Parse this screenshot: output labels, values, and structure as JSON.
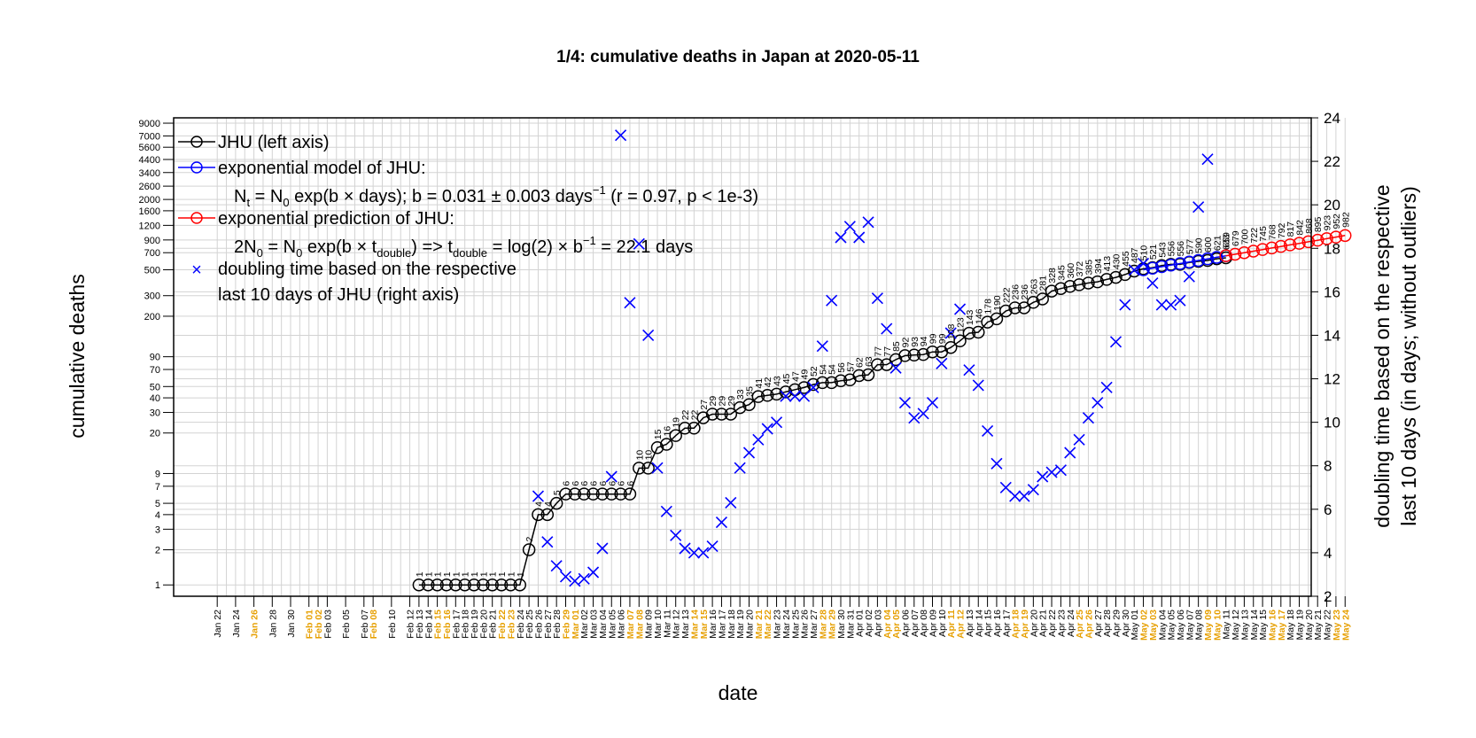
{
  "chart_data": {
    "type": "line",
    "title": "1/4: cumulative deaths in Japan at 2020-05-11",
    "xlabel": "date",
    "ylabel": "cumulative deaths",
    "y2label_line1": "doubling time based on the respective",
    "y2label_line2": "last 10 days (in days; without outliers)",
    "y_scale": "log",
    "ylim": [
      0.8,
      10000
    ],
    "y_ticks": [
      1,
      2,
      3,
      4,
      5,
      7,
      9,
      20,
      30,
      40,
      50,
      70,
      90,
      200,
      300,
      500,
      700,
      900,
      1200,
      1600,
      2000,
      2600,
      3400,
      4400,
      5600,
      7000,
      9000
    ],
    "y2lim": [
      2,
      24
    ],
    "y2_ticks": [
      2,
      4,
      6,
      8,
      10,
      12,
      14,
      16,
      18,
      20,
      22,
      24
    ],
    "grid": true,
    "legend_position": "top-left",
    "legend": {
      "jhu": "JHU (left axis)",
      "model": "exponential model of JHU:",
      "model_formula_a": "N",
      "model_formula_b": " = N",
      "model_formula_c": " exp(b × days); b = 0.031 ± 0.003 days",
      "model_formula_d": " (r = 0.97, p < 1e-3)",
      "prediction": "exponential prediction of JHU:",
      "pred_formula_a": "2N",
      "pred_formula_b": " = N",
      "pred_formula_c": " exp(b × t",
      "pred_formula_d": ") => t",
      "pred_formula_e": " = log(2) × b",
      "pred_formula_f": " = 22.1 days",
      "sub_t": "t",
      "sub_0": "0",
      "sub_double": "double",
      "sup_minus1": "−1",
      "doubling_line1": "doubling time based on the respective",
      "doubling_line2": "last 10 days of JHU (right axis)"
    },
    "colors": {
      "jhu": "#000000",
      "model": "#0000ff",
      "prediction": "#ff0000",
      "doubling": "#0000ff",
      "weekend_label": "#e69f00",
      "grid": "#d3d3d3"
    },
    "dates": [
      "Jan 22",
      "Jan 23",
      "Jan 24",
      "Jan 25",
      "Jan 26",
      "Jan 27",
      "Jan 28",
      "Jan 29",
      "Jan 30",
      "Jan 31",
      "Feb 01",
      "Feb 02",
      "Feb 03",
      "Feb 04",
      "Feb 05",
      "Feb 06",
      "Feb 07",
      "Feb 08",
      "Feb 09",
      "Feb 10",
      "Feb 11",
      "Feb 12",
      "Feb 13",
      "Feb 14",
      "Feb 15",
      "Feb 16",
      "Feb 17",
      "Feb 18",
      "Feb 19",
      "Feb 20",
      "Feb 21",
      "Feb 22",
      "Feb 23",
      "Feb 24",
      "Feb 25",
      "Feb 26",
      "Feb 27",
      "Feb 28",
      "Feb 29",
      "Mar 01",
      "Mar 02",
      "Mar 03",
      "Mar 04",
      "Mar 05",
      "Mar 06",
      "Mar 07",
      "Mar 08",
      "Mar 09",
      "Mar 10",
      "Mar 11",
      "Mar 12",
      "Mar 13",
      "Mar 14",
      "Mar 15",
      "Mar 16",
      "Mar 17",
      "Mar 18",
      "Mar 19",
      "Mar 20",
      "Mar 21",
      "Mar 22",
      "Mar 23",
      "Mar 24",
      "Mar 25",
      "Mar 26",
      "Mar 27",
      "Mar 28",
      "Mar 29",
      "Mar 30",
      "Mar 31",
      "Apr 01",
      "Apr 02",
      "Apr 03",
      "Apr 04",
      "Apr 05",
      "Apr 06",
      "Apr 07",
      "Apr 08",
      "Apr 09",
      "Apr 10",
      "Apr 11",
      "Apr 12",
      "Apr 13",
      "Apr 14",
      "Apr 15",
      "Apr 16",
      "Apr 17",
      "Apr 18",
      "Apr 19",
      "Apr 20",
      "Apr 21",
      "Apr 22",
      "Apr 23",
      "Apr 24",
      "Apr 25",
      "Apr 26",
      "Apr 27",
      "Apr 28",
      "Apr 29",
      "Apr 30",
      "May 01",
      "May 02",
      "May 03",
      "May 04",
      "May 05",
      "May 06",
      "May 07",
      "May 08",
      "May 09",
      "May 10",
      "May 11",
      "May 12",
      "May 13",
      "May 14",
      "May 15",
      "May 16",
      "May 17",
      "May 18",
      "May 19",
      "May 20",
      "May 21",
      "May 22",
      "May 23",
      "May 24"
    ],
    "x_tick_labels_shown": [
      "Jan 22",
      "Jan 24",
      "Jan 26",
      "Jan 28",
      "Jan 30",
      "Feb 01",
      "Feb 02",
      "Feb 03",
      "Feb 05",
      "Feb 07",
      "Feb 08",
      "Feb 10",
      "Feb 12",
      "Feb 13",
      "Feb 14",
      "Feb 15",
      "Feb 16",
      "Feb 17",
      "Feb 18",
      "Feb 19",
      "Feb 20",
      "Feb 21",
      "Feb 22",
      "Feb 23",
      "Feb 24",
      "Feb 25",
      "Feb 26",
      "Feb 27",
      "Feb 28",
      "Feb 29",
      "Mar 01",
      "Mar 02",
      "Mar 03",
      "Mar 04",
      "Mar 05",
      "Mar 06",
      "Mar 07",
      "Mar 08",
      "Mar 09",
      "Mar 10",
      "Mar 11",
      "Mar 12",
      "Mar 13",
      "Mar 14",
      "Mar 15",
      "Mar 16",
      "Mar 17",
      "Mar 18",
      "Mar 19",
      "Mar 20",
      "Mar 21",
      "Mar 22",
      "Mar 23",
      "Mar 24",
      "Mar 25",
      "Mar 26",
      "Mar 27",
      "Mar 28",
      "Mar 29",
      "Mar 30",
      "Mar 31",
      "Apr 01",
      "Apr 02",
      "Apr 03",
      "Apr 04",
      "Apr 05",
      "Apr 06",
      "Apr 07",
      "Apr 08",
      "Apr 09",
      "Apr 10",
      "Apr 11",
      "Apr 12",
      "Apr 13",
      "Apr 14",
      "Apr 15",
      "Apr 16",
      "Apr 17",
      "Apr 18",
      "Apr 19",
      "Apr 20",
      "Apr 21",
      "Apr 22",
      "Apr 23",
      "Apr 24",
      "Apr 25",
      "Apr 26",
      "Apr 27",
      "Apr 28",
      "Apr 29",
      "Apr 30",
      "May 01",
      "May 02",
      "May 03",
      "May 04",
      "May 05",
      "May 06",
      "May 07",
      "May 08",
      "May 09",
      "May 10",
      "May 11",
      "May 12",
      "May 13",
      "May 14",
      "May 15",
      "May 16",
      "May 17",
      "May 18",
      "May 19",
      "May 20",
      "May 21",
      "May 22",
      "May 23",
      "May 24"
    ],
    "weekend_labels": [
      "Jan 25",
      "Jan 26",
      "Feb 01",
      "Feb 02",
      "Feb 08",
      "Feb 09",
      "Feb 15",
      "Feb 16",
      "Feb 22",
      "Feb 23",
      "Feb 29",
      "Mar 01",
      "Mar 07",
      "Mar 08",
      "Mar 14",
      "Mar 15",
      "Mar 21",
      "Mar 22",
      "Mar 28",
      "Mar 29",
      "Apr 04",
      "Apr 05",
      "Apr 11",
      "Apr 12",
      "Apr 18",
      "Apr 19",
      "Apr 25",
      "Apr 26",
      "May 02",
      "May 03",
      "May 09",
      "May 10",
      "May 16",
      "May 17",
      "May 23",
      "May 24"
    ],
    "series": [
      {
        "name": "JHU (left axis)",
        "points": [
          [
            "Feb 13",
            1
          ],
          [
            "Feb 14",
            1
          ],
          [
            "Feb 15",
            1
          ],
          [
            "Feb 16",
            1
          ],
          [
            "Feb 17",
            1
          ],
          [
            "Feb 18",
            1
          ],
          [
            "Feb 19",
            1
          ],
          [
            "Feb 20",
            1
          ],
          [
            "Feb 21",
            1
          ],
          [
            "Feb 22",
            1
          ],
          [
            "Feb 23",
            1
          ],
          [
            "Feb 24",
            1
          ],
          [
            "Feb 25",
            2
          ],
          [
            "Feb 26",
            4
          ],
          [
            "Feb 27",
            4
          ],
          [
            "Feb 28",
            5
          ],
          [
            "Feb 29",
            6
          ],
          [
            "Mar 01",
            6
          ],
          [
            "Mar 02",
            6
          ],
          [
            "Mar 03",
            6
          ],
          [
            "Mar 04",
            6
          ],
          [
            "Mar 05",
            6
          ],
          [
            "Mar 06",
            6
          ],
          [
            "Mar 07",
            6
          ],
          [
            "Mar 08",
            10
          ],
          [
            "Mar 09",
            10
          ],
          [
            "Mar 10",
            15
          ],
          [
            "Mar 11",
            16
          ],
          [
            "Mar 12",
            19
          ],
          [
            "Mar 13",
            22
          ],
          [
            "Mar 14",
            22
          ],
          [
            "Mar 15",
            27
          ],
          [
            "Mar 16",
            29
          ],
          [
            "Mar 17",
            29
          ],
          [
            "Mar 18",
            29
          ],
          [
            "Mar 19",
            33
          ],
          [
            "Mar 20",
            35
          ],
          [
            "Mar 21",
            41
          ],
          [
            "Mar 22",
            42
          ],
          [
            "Mar 23",
            43
          ],
          [
            "Mar 24",
            45
          ],
          [
            "Mar 25",
            47
          ],
          [
            "Mar 26",
            49
          ],
          [
            "Mar 27",
            52
          ],
          [
            "Mar 28",
            54
          ],
          [
            "Mar 29",
            54
          ],
          [
            "Mar 30",
            56
          ],
          [
            "Mar 31",
            57
          ],
          [
            "Apr 01",
            62
          ],
          [
            "Apr 02",
            63
          ],
          [
            "Apr 03",
            77
          ],
          [
            "Apr 04",
            77
          ],
          [
            "Apr 05",
            85
          ],
          [
            "Apr 06",
            92
          ],
          [
            "Apr 07",
            93
          ],
          [
            "Apr 08",
            94
          ],
          [
            "Apr 09",
            99
          ],
          [
            "Apr 10",
            99
          ],
          [
            "Apr 11",
            108
          ],
          [
            "Apr 12",
            123
          ],
          [
            "Apr 13",
            143
          ],
          [
            "Apr 14",
            146
          ],
          [
            "Apr 15",
            178
          ],
          [
            "Apr 16",
            190
          ],
          [
            "Apr 17",
            222
          ],
          [
            "Apr 18",
            236
          ],
          [
            "Apr 19",
            236
          ],
          [
            "Apr 20",
            263
          ],
          [
            "Apr 21",
            281
          ],
          [
            "Apr 22",
            328
          ],
          [
            "Apr 23",
            345
          ],
          [
            "Apr 24",
            360
          ],
          [
            "Apr 25",
            372
          ],
          [
            "Apr 26",
            385
          ],
          [
            "Apr 27",
            394
          ],
          [
            "Apr 28",
            413
          ],
          [
            "Apr 29",
            430
          ],
          [
            "Apr 30",
            455
          ],
          [
            "May 01",
            487
          ],
          [
            "May 02",
            510
          ],
          [
            "May 03",
            521
          ],
          [
            "May 04",
            543
          ],
          [
            "May 05",
            556
          ],
          [
            "May 06",
            556
          ],
          [
            "May 07",
            577
          ],
          [
            "May 08",
            590
          ],
          [
            "May 09",
            600
          ],
          [
            "May 10",
            621
          ],
          [
            "May 11",
            633
          ]
        ]
      },
      {
        "name": "exponential model of JHU:",
        "points": [
          [
            "May 02",
            500
          ],
          [
            "May 03",
            515
          ],
          [
            "May 04",
            531
          ],
          [
            "May 05",
            548
          ],
          [
            "May 06",
            565
          ],
          [
            "May 07",
            583
          ],
          [
            "May 08",
            601
          ],
          [
            "May 09",
            620
          ],
          [
            "May 10",
            639
          ],
          [
            "May 11",
            659
          ]
        ]
      },
      {
        "name": "exponential prediction of JHU:",
        "points": [
          [
            "May 11",
            659
          ],
          [
            "May 12",
            679
          ],
          [
            "May 13",
            700
          ],
          [
            "May 14",
            722
          ],
          [
            "May 15",
            745
          ],
          [
            "May 16",
            768
          ],
          [
            "May 17",
            792
          ],
          [
            "May 18",
            817
          ],
          [
            "May 19",
            842
          ],
          [
            "May 20",
            868
          ],
          [
            "May 21",
            895
          ],
          [
            "May 22",
            923
          ],
          [
            "May 23",
            952
          ],
          [
            "May 24",
            982
          ]
        ],
        "labels": [
          "659",
          "679",
          "700",
          "722",
          "745",
          "768",
          "792",
          "817",
          "842",
          "868",
          "895",
          "923",
          "952",
          "982"
        ]
      },
      {
        "name": "doubling time (right axis)",
        "axis": "right",
        "points": [
          [
            "Feb 26",
            6.6
          ],
          [
            "Feb 27",
            4.5
          ],
          [
            "Feb 28",
            3.4
          ],
          [
            "Feb 29",
            2.9
          ],
          [
            "Mar 01",
            2.7
          ],
          [
            "Mar 02",
            2.8
          ],
          [
            "Mar 03",
            3.1
          ],
          [
            "Mar 04",
            4.2
          ],
          [
            "Mar 05",
            7.5
          ],
          [
            "Mar 06",
            23.2
          ],
          [
            "Mar 07",
            15.5
          ],
          [
            "Mar 08",
            18.2
          ],
          [
            "Mar 09",
            14.0
          ],
          [
            "Mar 10",
            7.9
          ],
          [
            "Mar 11",
            5.9
          ],
          [
            "Mar 12",
            4.8
          ],
          [
            "Mar 13",
            4.2
          ],
          [
            "Mar 14",
            4.0
          ],
          [
            "Mar 15",
            4.0
          ],
          [
            "Mar 16",
            4.3
          ],
          [
            "Mar 17",
            5.4
          ],
          [
            "Mar 18",
            6.3
          ],
          [
            "Mar 19",
            7.9
          ],
          [
            "Mar 20",
            8.6
          ],
          [
            "Mar 21",
            9.2
          ],
          [
            "Mar 22",
            9.7
          ],
          [
            "Mar 23",
            10.0
          ],
          [
            "Mar 24",
            11.2
          ],
          [
            "Mar 25",
            11.2
          ],
          [
            "Mar 26",
            11.2
          ],
          [
            "Mar 27",
            11.6
          ],
          [
            "Mar 28",
            13.5
          ],
          [
            "Mar 29",
            15.6
          ],
          [
            "Mar 30",
            18.5
          ],
          [
            "Mar 31",
            19.0
          ],
          [
            "Apr 01",
            18.5
          ],
          [
            "Apr 02",
            19.2
          ],
          [
            "Apr 03",
            15.7
          ],
          [
            "Apr 04",
            14.3
          ],
          [
            "Apr 05",
            12.5
          ],
          [
            "Apr 06",
            10.9
          ],
          [
            "Apr 07",
            10.2
          ],
          [
            "Apr 08",
            10.4
          ],
          [
            "Apr 09",
            10.9
          ],
          [
            "Apr 10",
            12.7
          ],
          [
            "Apr 11",
            14.1
          ],
          [
            "Apr 12",
            15.2
          ],
          [
            "Apr 13",
            12.4
          ],
          [
            "Apr 14",
            11.7
          ],
          [
            "Apr 15",
            9.6
          ],
          [
            "Apr 16",
            8.1
          ],
          [
            "Apr 17",
            7.0
          ],
          [
            "Apr 18",
            6.6
          ],
          [
            "Apr 19",
            6.6
          ],
          [
            "Apr 20",
            6.9
          ],
          [
            "Apr 21",
            7.5
          ],
          [
            "Apr 22",
            7.7
          ],
          [
            "Apr 23",
            7.8
          ],
          [
            "Apr 24",
            8.6
          ],
          [
            "Apr 25",
            9.2
          ],
          [
            "Apr 26",
            10.2
          ],
          [
            "Apr 27",
            10.9
          ],
          [
            "Apr 28",
            11.6
          ],
          [
            "Apr 29",
            13.7
          ],
          [
            "Apr 30",
            15.4
          ],
          [
            "May 01",
            17.0
          ],
          [
            "May 02",
            17.3
          ],
          [
            "May 03",
            16.4
          ],
          [
            "May 04",
            15.4
          ],
          [
            "May 05",
            15.4
          ],
          [
            "May 06",
            15.6
          ],
          [
            "May 07",
            16.7
          ],
          [
            "May 08",
            19.9
          ],
          [
            "May 09",
            22.1
          ]
        ]
      }
    ]
  }
}
